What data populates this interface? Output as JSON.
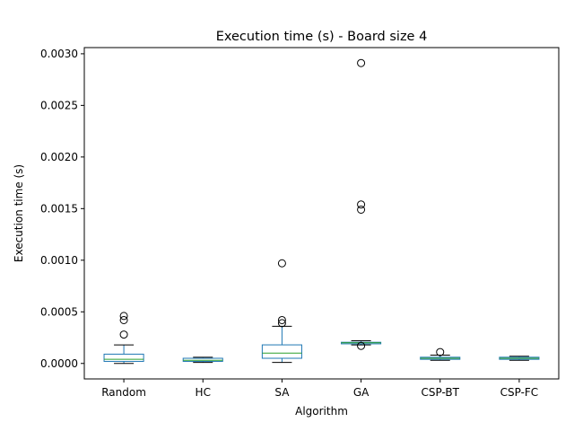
{
  "chart_data": {
    "type": "box",
    "title": "Execution time (s) - Board size 4",
    "xlabel": "Algorithm",
    "ylabel": "Execution time (s)",
    "ylim": [
      -0.00015,
      0.00306
    ],
    "yticks": [
      0.0,
      0.0005,
      0.001,
      0.0015,
      0.002,
      0.0025,
      0.003
    ],
    "ytick_labels": [
      "0.0000",
      "0.0005",
      "0.0010",
      "0.0015",
      "0.0020",
      "0.0025",
      "0.0030"
    ],
    "grid": false,
    "categories": [
      "Random",
      "HC",
      "SA",
      "GA",
      "CSP-BT",
      "CSP-FC"
    ],
    "boxes": [
      {
        "whislo": 0.0,
        "q1": 2e-05,
        "med": 4e-05,
        "q3": 9e-05,
        "whishi": 0.00018,
        "fliers": [
          0.00028,
          0.00042,
          0.00046
        ]
      },
      {
        "whislo": 1e-05,
        "q1": 2e-05,
        "med": 3e-05,
        "q3": 5e-05,
        "whishi": 6e-05,
        "fliers": []
      },
      {
        "whislo": 1e-05,
        "q1": 5e-05,
        "med": 0.0001,
        "q3": 0.00018,
        "whishi": 0.00036,
        "fliers": [
          0.00039,
          0.00042,
          0.00097
        ]
      },
      {
        "whislo": 0.00018,
        "q1": 0.00019,
        "med": 0.0002,
        "q3": 0.000205,
        "whishi": 0.00022,
        "fliers": [
          0.00017,
          0.00149,
          0.00154,
          0.00291
        ]
      },
      {
        "whislo": 3e-05,
        "q1": 4e-05,
        "med": 5e-05,
        "q3": 6e-05,
        "whishi": 8e-05,
        "fliers": [
          0.00011
        ]
      },
      {
        "whislo": 3e-05,
        "q1": 4e-05,
        "med": 5e-05,
        "q3": 6e-05,
        "whishi": 7e-05,
        "fliers": []
      }
    ],
    "colors": {
      "box": "#1f77b4",
      "median": "#2ca02c",
      "whisker": "#000000",
      "flier": "#000000"
    }
  }
}
